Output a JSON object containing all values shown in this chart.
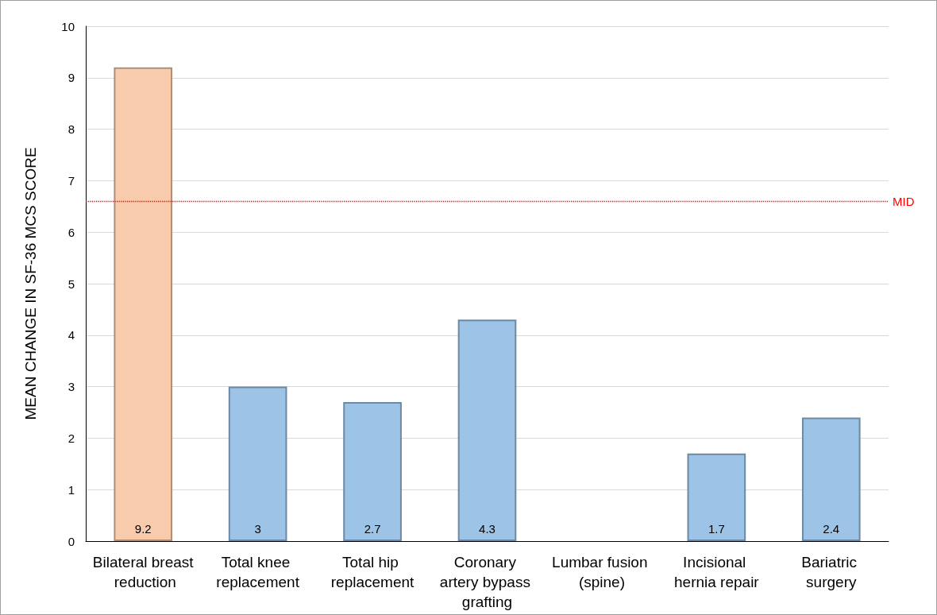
{
  "chart_data": {
    "type": "bar",
    "ylabel": "MEAN CHANGE IN SF-36 MCS SCORE",
    "categories": [
      "Bilateral breast reduction",
      "Total knee replacement",
      "Total hip replacement",
      "Coronary artery bypass grafting",
      "Lumbar fusion (spine)",
      "Incisional hernia repair",
      "Bariatric surgery"
    ],
    "values": [
      9.2,
      3,
      2.7,
      4.3,
      null,
      1.7,
      2.4
    ],
    "colors": [
      "#f8cbad",
      "#9dc3e6",
      "#9dc3e6",
      "#9dc3e6",
      "#9dc3e6",
      "#9dc3e6",
      "#9dc3e6"
    ],
    "data_labels": true,
    "ylim": [
      0,
      10
    ],
    "yticks": [
      0,
      1,
      2,
      3,
      4,
      5,
      6,
      7,
      8,
      9,
      10
    ],
    "grid": "y",
    "ref_lines": [
      {
        "axis": "y",
        "value": 6.6,
        "label": "MID",
        "color": "#ff0000",
        "line_style": "dotted"
      }
    ]
  }
}
